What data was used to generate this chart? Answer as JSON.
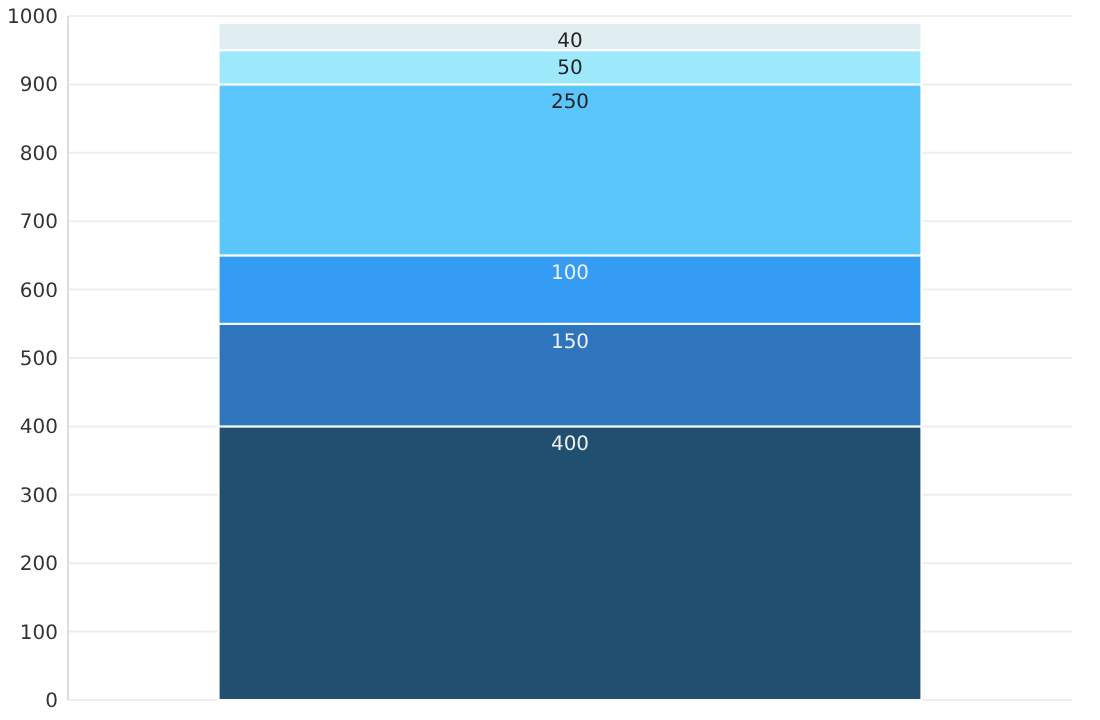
{
  "chart_data": {
    "type": "bar",
    "stacked": true,
    "categories": [
      null
    ],
    "series": [
      {
        "color": "#214f6f",
        "values": [
          400
        ]
      },
      {
        "color": "#2e75bd",
        "values": [
          150
        ]
      },
      {
        "color": "#359cf3",
        "values": [
          100
        ]
      },
      {
        "color": "#5ac6fc",
        "values": [
          250
        ]
      },
      {
        "color": "#9ee8fc",
        "values": [
          50
        ]
      },
      {
        "color": "#e0eef2",
        "values": [
          40
        ]
      }
    ],
    "ylim": [
      0,
      1000
    ],
    "yticks": [
      0,
      100,
      200,
      300,
      400,
      500,
      600,
      700,
      800,
      900,
      1000
    ],
    "grid": "y",
    "data_labels": true
  }
}
